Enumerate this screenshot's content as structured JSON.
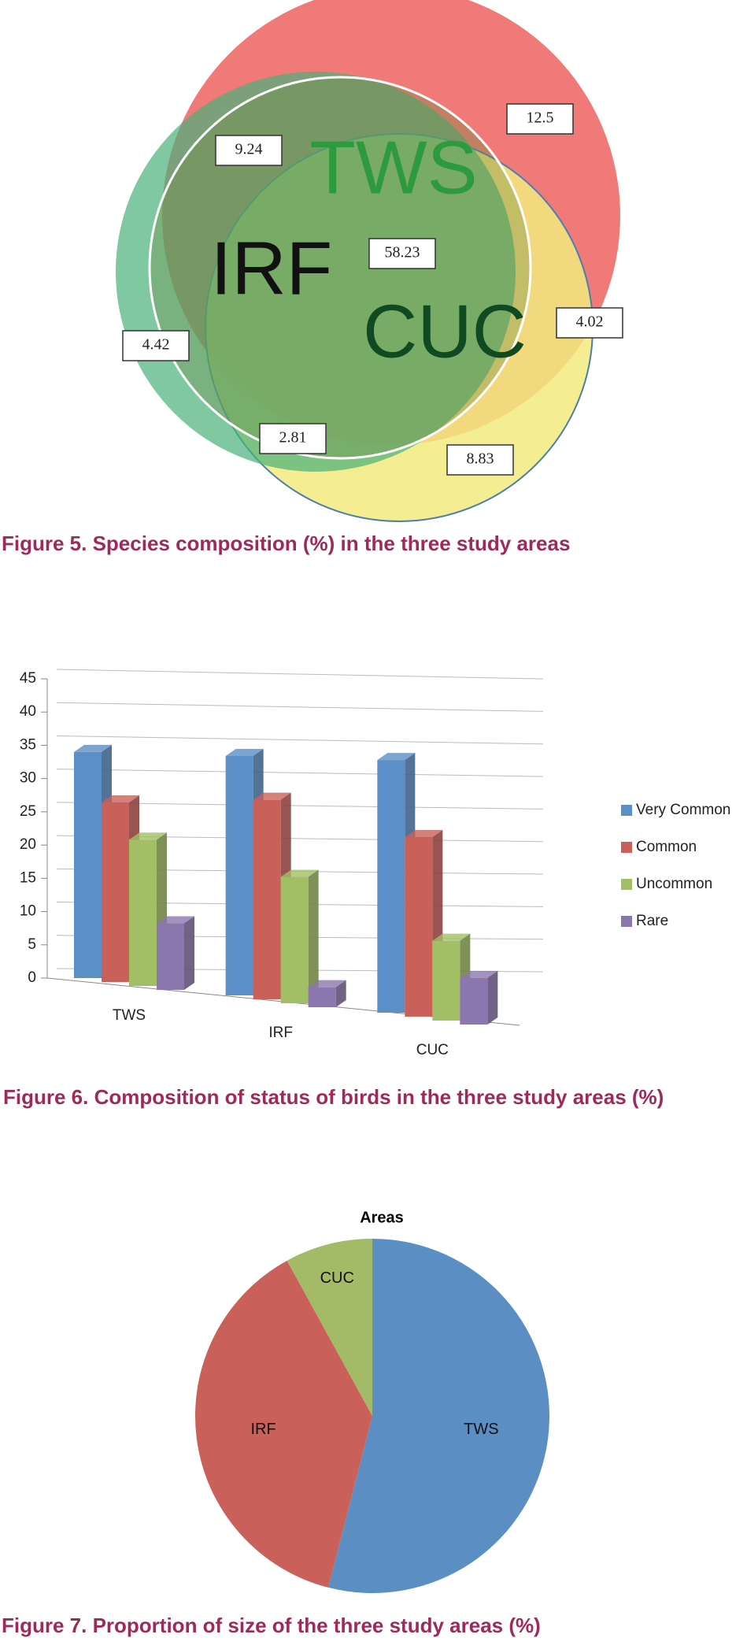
{
  "chart_data": [
    {
      "type": "venn",
      "caption": "Figure 5. Species composition (%) in the three study areas",
      "sets": [
        "TWS",
        "IRF",
        "CUC"
      ],
      "regions": [
        {
          "sets": [
            "TWS"
          ],
          "value": 12.5
        },
        {
          "sets": [
            "TWS",
            "IRF"
          ],
          "value": 9.24
        },
        {
          "sets": [
            "TWS",
            "IRF",
            "CUC"
          ],
          "value": 58.23
        },
        {
          "sets": [
            "TWS",
            "CUC"
          ],
          "value": 4.02
        },
        {
          "sets": [
            "IRF"
          ],
          "value": 4.42
        },
        {
          "sets": [
            "IRF",
            "CUC"
          ],
          "value": 2.81
        },
        {
          "sets": [
            "CUC"
          ],
          "value": 8.83
        }
      ]
    },
    {
      "type": "bar",
      "caption": "Figure 6. Composition of status of birds in the three study areas (%)",
      "categories": [
        "TWS",
        "IRF",
        "CUC"
      ],
      "series": [
        {
          "name": "Very Common",
          "color": "#5b8fc7",
          "values": [
            34,
            36,
            38
          ]
        },
        {
          "name": "Common",
          "color": "#c9605a",
          "values": [
            27,
            30,
            27
          ]
        },
        {
          "name": "Uncommon",
          "color": "#a3bf66",
          "values": [
            22,
            19,
            12
          ]
        },
        {
          "name": "Rare",
          "color": "#8c76ae",
          "values": [
            10,
            3,
            7
          ]
        }
      ],
      "ylim": [
        0,
        45
      ],
      "yticks": [
        0,
        5,
        10,
        15,
        20,
        25,
        30,
        35,
        40,
        45
      ],
      "grid": true,
      "legend": "right"
    },
    {
      "type": "pie",
      "title": "Areas",
      "caption": "Figure 7. Proportion of size of the three study areas (%)",
      "categories": [
        "TWS",
        "IRF",
        "CUC"
      ],
      "values": [
        54,
        38,
        8
      ],
      "colors": [
        "#5b8fc3",
        "#c9605a",
        "#a3bb66"
      ]
    }
  ]
}
